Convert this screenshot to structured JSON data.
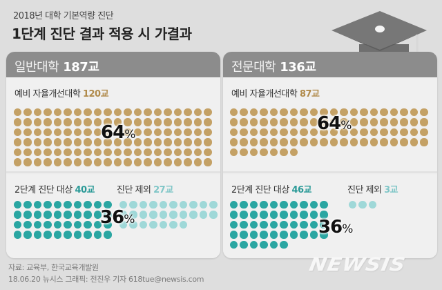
{
  "header": {
    "subtitle": "2018년 대학 기본역량 진단",
    "title": "1단계 진단 결과 적용 시 가결과",
    "icon": "graduation-cap-icon"
  },
  "panels": [
    {
      "name": "일반대학",
      "total": "187교",
      "upper": {
        "label": "예비 자율개선대학",
        "value": "120교",
        "percent": "64",
        "percent_symbol": "%"
      },
      "lower": {
        "target_label": "2단계 진단 대상",
        "target_value": "40교",
        "excluded_label": "진단 제외",
        "excluded_value": "27교",
        "percent": "36",
        "percent_symbol": "%"
      }
    },
    {
      "name": "전문대학",
      "total": "136교",
      "upper": {
        "label": "예비 자율개선대학",
        "value": "87교",
        "percent": "64",
        "percent_symbol": "%"
      },
      "lower": {
        "target_label": "2단계 진단 대상",
        "target_value": "46교",
        "excluded_label": "진단 제외",
        "excluded_value": "3교",
        "percent": "36",
        "percent_symbol": "%"
      }
    }
  ],
  "footer": {
    "source": "자료: 교육부, 한국교육개발원",
    "credit": "18.06.20 뉴시스 그래픽: 전진우 기자 618tue@newsis.com",
    "logo": "NEWSIS"
  },
  "colors": {
    "gold": "#c4a165",
    "teal": "#2aa6a2",
    "light_teal": "#9fd8d8",
    "header_band": "#8c8c8c"
  },
  "chart_data": {
    "type": "pictograph",
    "title": "1단계 진단 결과 적용 시 가결과",
    "subtitle": "2018년 대학 기본역량 진단",
    "unit": "교 (schools, 1 dot = 1 school)",
    "categories": [
      "일반대학",
      "전문대학"
    ],
    "totals": [
      187,
      136
    ],
    "series": [
      {
        "name": "예비 자율개선대학",
        "values": [
          120,
          87
        ],
        "percent": [
          64,
          64
        ],
        "color": "#c4a165"
      },
      {
        "name": "2단계 진단 대상",
        "values": [
          40,
          46
        ],
        "color": "#2aa6a2"
      },
      {
        "name": "진단 제외",
        "values": [
          27,
          3
        ],
        "color": "#9fd8d8"
      }
    ],
    "annotations": [
      "64% (예비 자율개선대학 share)",
      "36% (2단계 진단 대상 + 진단 제외 share)"
    ],
    "source": "교육부, 한국교육개발원"
  }
}
